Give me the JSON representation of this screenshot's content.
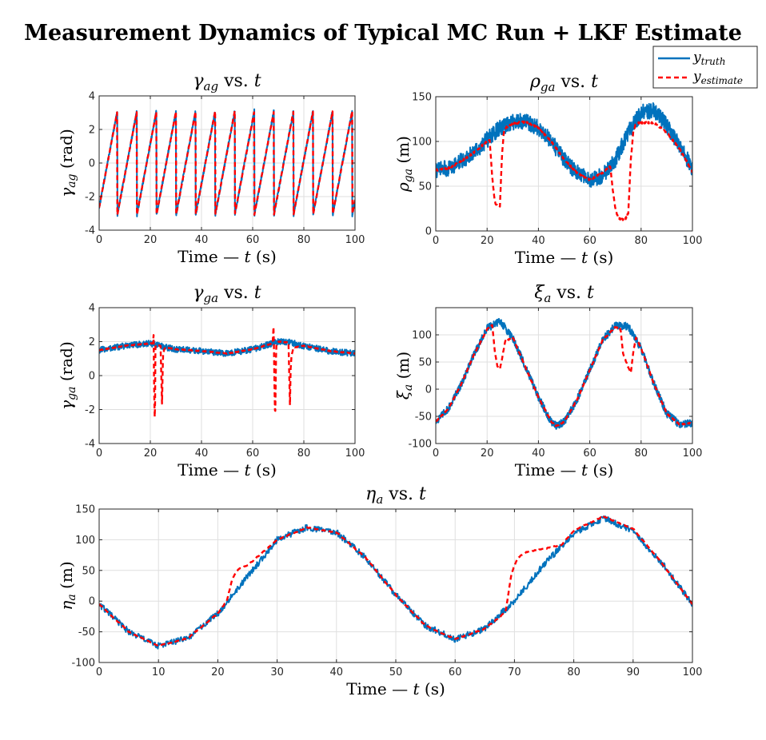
{
  "figure": {
    "title": "Measurement Dynamics of Typical MC Run + LKF Estimate"
  },
  "legend": {
    "placement": "top-right",
    "entries": [
      {
        "sym": "y",
        "sub": "truth",
        "color": "#0072BD",
        "style": "solid"
      },
      {
        "sym": "y",
        "sub": "estimate",
        "color": "#FF0000",
        "style": "dashed"
      }
    ]
  },
  "colors": {
    "truth": "#0072BD",
    "estimate": "#FF0000",
    "grid": "#DFDFDF",
    "axes": "#262626"
  },
  "chart_data": [
    {
      "id": "gamma_ag",
      "type": "line",
      "title": {
        "sym": "γ",
        "sub": "ag",
        "rest": " vs. t"
      },
      "xlabel": "Time — t (s)",
      "ylabel": {
        "sym": "γ",
        "sub": "ag",
        "rest": " (rad)"
      },
      "xlim": [
        0,
        100
      ],
      "ylim": [
        -4,
        4
      ],
      "xticks": [
        0,
        20,
        40,
        60,
        80,
        100
      ],
      "yticks": [
        -4,
        -2,
        0,
        2,
        4
      ],
      "grid": true,
      "model": "sawtooth",
      "params": {
        "period": 7.65,
        "phase": 0.55,
        "amp": 3.1,
        "noise": 0.12
      },
      "series": [
        {
          "key": "truth",
          "approx_x": [
            0,
            0.5,
            1,
            8.2,
            8.3,
            15.8,
            15.9,
            23.5,
            23.6,
            31,
            31.1
          ],
          "approx_y": [
            2.7,
            3.0,
            -3.1,
            3.0,
            -3.1,
            3.0,
            -3.1,
            3.0,
            -3.1,
            3.0,
            -3.1
          ]
        },
        {
          "key": "estimate",
          "approx_x": [
            0,
            0.5,
            1,
            8.2,
            8.3,
            15.8,
            15.9,
            23.5,
            23.6,
            31,
            31.1
          ],
          "approx_y": [
            2.7,
            3.0,
            -3.1,
            3.0,
            -3.1,
            3.0,
            -3.1,
            3.0,
            -3.1,
            3.0,
            -3.1
          ]
        }
      ]
    },
    {
      "id": "rho_ga",
      "type": "line",
      "title": {
        "sym": "ρ",
        "sub": "ga",
        "rest": " vs. t"
      },
      "xlabel": "Time — t (s)",
      "ylabel": {
        "sym": "ρ",
        "sub": "ga",
        "rest": " (m)"
      },
      "xlim": [
        0,
        100
      ],
      "ylim": [
        0,
        150
      ],
      "xticks": [
        0,
        20,
        40,
        60,
        80,
        100
      ],
      "yticks": [
        0,
        50,
        100,
        150
      ],
      "grid": true,
      "series": [
        {
          "key": "truth",
          "noise": 9,
          "x": [
            0,
            5,
            10,
            15,
            20,
            25,
            30,
            35,
            40,
            45,
            50,
            55,
            60,
            65,
            70,
            75,
            80,
            85,
            90,
            95,
            100
          ],
          "y": [
            68,
            70,
            78,
            88,
            102,
            115,
            122,
            122,
            115,
            100,
            80,
            65,
            57,
            62,
            80,
            110,
            132,
            135,
            118,
            95,
            70
          ]
        },
        {
          "key": "estimate",
          "noise": 1,
          "x": [
            0,
            5,
            10,
            15,
            20,
            21,
            22,
            23,
            24,
            25,
            25.8,
            26.5,
            27.5,
            30,
            35,
            40,
            45,
            50,
            55,
            60,
            65,
            68,
            69,
            70,
            71,
            72,
            73,
            74,
            75,
            76,
            77,
            78,
            80,
            85,
            90,
            95,
            100
          ],
          "y": [
            68,
            70,
            78,
            88,
            100,
            101,
            60,
            32,
            28,
            28,
            85,
            110,
            116,
            120,
            122,
            115,
            100,
            80,
            65,
            57,
            65,
            72,
            45,
            25,
            15,
            13,
            13,
            14,
            20,
            80,
            112,
            120,
            121,
            121,
            110,
            92,
            66
          ]
        }
      ]
    },
    {
      "id": "gamma_ga",
      "type": "line",
      "title": {
        "sym": "γ",
        "sub": "ga",
        "rest": " vs. t"
      },
      "xlabel": "Time — t (s)",
      "ylabel": {
        "sym": "γ",
        "sub": "ga",
        "rest": " (rad)"
      },
      "xlim": [
        0,
        100
      ],
      "ylim": [
        -4,
        4
      ],
      "xticks": [
        0,
        20,
        40,
        60,
        80,
        100
      ],
      "yticks": [
        -4,
        -2,
        0,
        2,
        4
      ],
      "grid": true,
      "series": [
        {
          "key": "truth",
          "noise": 0.18,
          "x": [
            0,
            10,
            20,
            25,
            30,
            40,
            50,
            60,
            70,
            75,
            80,
            90,
            100
          ],
          "y": [
            1.5,
            1.75,
            1.9,
            1.7,
            1.55,
            1.45,
            1.3,
            1.55,
            2.0,
            1.95,
            1.75,
            1.45,
            1.3
          ]
        },
        {
          "key": "estimate",
          "noise": 0.02,
          "x": [
            0,
            10,
            20,
            21,
            21.3,
            21.5,
            21.8,
            22,
            22.3,
            24,
            24.6,
            24.8,
            25,
            25.5,
            26,
            30,
            40,
            50,
            60,
            67.8,
            68.2,
            68.5,
            68.8,
            69.2,
            70,
            74,
            74.6,
            74.8,
            75.2,
            76,
            80,
            90,
            100
          ],
          "y": [
            1.5,
            1.75,
            1.9,
            1.9,
            2.4,
            -1.0,
            -3.0,
            1.7,
            1.8,
            1.75,
            -1.8,
            0.2,
            1.2,
            1.6,
            1.65,
            1.55,
            1.45,
            1.3,
            1.55,
            1.9,
            3.0,
            -0.5,
            -2.7,
            1.8,
            2.0,
            1.95,
            -1.9,
            0.3,
            1.2,
            1.65,
            1.75,
            1.45,
            1.3
          ]
        }
      ]
    },
    {
      "id": "xi_a",
      "type": "line",
      "title": {
        "sym": "ξ",
        "sub": "a",
        "rest": " vs. t"
      },
      "xlabel": "Time — t (s)",
      "ylabel": {
        "sym": "ξ",
        "sub": "a",
        "rest": " (m)"
      },
      "xlim": [
        0,
        100
      ],
      "ylim": [
        -100,
        150
      ],
      "xticks": [
        0,
        20,
        40,
        60,
        80,
        100
      ],
      "yticks": [
        -100,
        -50,
        0,
        50,
        100
      ],
      "grid": true,
      "series": [
        {
          "key": "truth",
          "noise": 7,
          "x": [
            0,
            5,
            10,
            15,
            20,
            25,
            30,
            35,
            40,
            45,
            47,
            50,
            55,
            60,
            65,
            70,
            75,
            80,
            85,
            90,
            95,
            100
          ],
          "y": [
            -60,
            -35,
            10,
            65,
            112,
            125,
            95,
            40,
            -15,
            -60,
            -68,
            -60,
            -20,
            35,
            90,
            118,
            115,
            75,
            10,
            -45,
            -65,
            -62
          ]
        },
        {
          "key": "estimate",
          "noise": 1,
          "x": [
            0,
            5,
            10,
            15,
            20,
            22,
            23,
            24,
            25,
            26,
            27,
            30,
            35,
            40,
            45,
            47,
            50,
            55,
            60,
            65,
            70,
            72,
            73,
            75,
            76,
            77,
            78,
            80,
            85,
            90,
            95,
            100
          ],
          "y": [
            -60,
            -35,
            10,
            65,
            110,
            118,
            70,
            42,
            38,
            60,
            88,
            95,
            40,
            -15,
            -60,
            -68,
            -60,
            -20,
            35,
            90,
            115,
            110,
            65,
            40,
            30,
            70,
            95,
            75,
            10,
            -45,
            -65,
            -62
          ]
        }
      ]
    },
    {
      "id": "eta_a",
      "type": "line",
      "title": {
        "sym": "η",
        "sub": "a",
        "rest": " vs. t"
      },
      "xlabel": "Time — t (s)",
      "ylabel": {
        "sym": "η",
        "sub": "a",
        "rest": " (m)"
      },
      "xlim": [
        0,
        100
      ],
      "ylim": [
        -100,
        150
      ],
      "xticks": [
        0,
        10,
        20,
        30,
        40,
        50,
        60,
        70,
        80,
        90,
        100
      ],
      "yticks": [
        -100,
        -50,
        0,
        50,
        100,
        150
      ],
      "grid": true,
      "series": [
        {
          "key": "truth",
          "noise": 5,
          "x": [
            0,
            5,
            10,
            15,
            20,
            25,
            30,
            35,
            40,
            45,
            50,
            55,
            60,
            65,
            70,
            75,
            80,
            85,
            90,
            95,
            100
          ],
          "y": [
            -5,
            -50,
            -73,
            -60,
            -20,
            40,
            100,
            120,
            112,
            70,
            10,
            -40,
            -62,
            -45,
            0,
            60,
            110,
            135,
            115,
            60,
            -5
          ]
        },
        {
          "key": "estimate",
          "noise": 0.8,
          "x": [
            0,
            5,
            10,
            15,
            20,
            21.5,
            22.5,
            23.5,
            25,
            30,
            35,
            40,
            45,
            50,
            55,
            60,
            65,
            68.5,
            69.5,
            70.5,
            72,
            75,
            78,
            80,
            85,
            90,
            95,
            100
          ],
          "y": [
            -5,
            -50,
            -73,
            -60,
            -20,
            0,
            38,
            52,
            58,
            100,
            120,
            112,
            70,
            10,
            -40,
            -62,
            -45,
            -18,
            45,
            70,
            80,
            85,
            92,
            115,
            138,
            118,
            60,
            -5
          ]
        }
      ]
    }
  ]
}
